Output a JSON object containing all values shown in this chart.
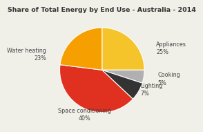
{
  "title": "Share of Total Energy by End Use - Australia - 2014",
  "labels": [
    "Appliances",
    "Cooking",
    "Lighting",
    "Space conditioning",
    "Water heating"
  ],
  "values": [
    25,
    5,
    7,
    40,
    23
  ],
  "colors": [
    "#F5C42A",
    "#B0B0B0",
    "#333333",
    "#E03020",
    "#F5A000"
  ],
  "startangle": 90,
  "background_color": "#F0EFE8",
  "title_fontsize": 6.8,
  "label_fontsize": 5.8,
  "label_positions": [
    [
      1.28,
      0.52,
      "left",
      "center"
    ],
    [
      1.32,
      -0.2,
      "left",
      "center"
    ],
    [
      0.9,
      -0.62,
      "left",
      "bottom"
    ],
    [
      -0.42,
      -0.88,
      "center",
      "top"
    ],
    [
      -1.32,
      0.38,
      "right",
      "center"
    ]
  ],
  "label_texts": [
    "Appliances\n25%",
    "Cooking\n5%",
    "Lighting\n7%",
    "Space conditioning\n40%",
    "Water heating\n23%"
  ]
}
